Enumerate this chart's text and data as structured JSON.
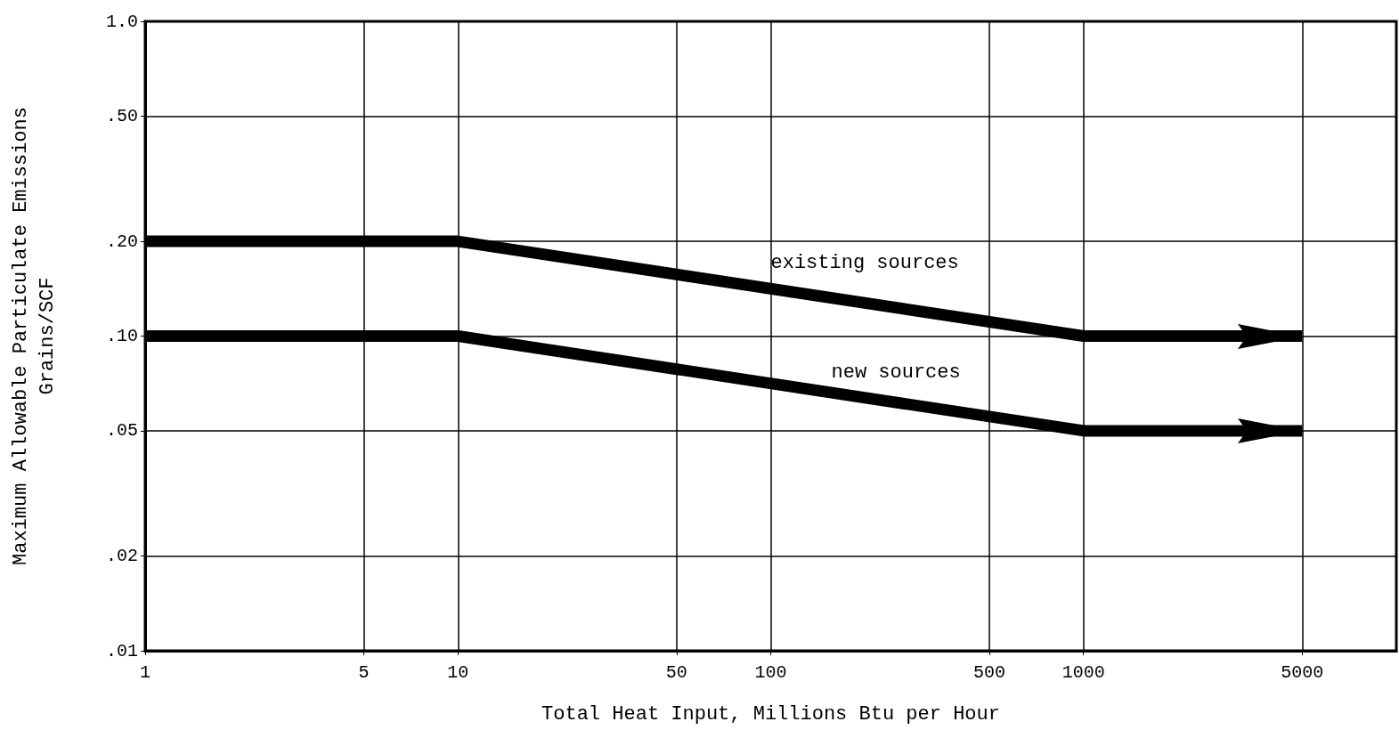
{
  "chart_data": {
    "type": "line",
    "xlabel": "Total Heat Input, Millions Btu per Hour",
    "ylabel": "Maximum Allowable Particulate Emissions\nGrains/SCF",
    "log": "xy",
    "grid": true,
    "xlim": [
      1,
      10000
    ],
    "xticks": [
      1,
      5,
      10,
      50,
      100,
      500,
      1000,
      5000
    ],
    "ylim": [
      0.01,
      1
    ],
    "yticks": [
      {
        "value": 0.01,
        "label": ".01"
      },
      {
        "value": 0.02,
        "label": ".02"
      },
      {
        "value": 0.05,
        "label": ".05"
      },
      {
        "value": 0.1,
        "label": ".10"
      },
      {
        "value": 0.2,
        "label": ".20"
      },
      {
        "value": 0.5,
        "label": ".50"
      },
      {
        "value": 1,
        "label": "1.0"
      }
    ],
    "series": [
      {
        "color": "#000000",
        "x": [
          1,
          10,
          1000,
          5000
        ],
        "values": [
          0.2,
          0.2,
          0.1,
          0.1
        ]
      },
      {
        "color": "#000000",
        "x": [
          1,
          10,
          1000,
          5000
        ],
        "values": [
          0.1,
          0.1,
          0.05,
          0.05
        ]
      }
    ],
    "annotations": [
      "existing sources",
      "new sources"
    ]
  }
}
